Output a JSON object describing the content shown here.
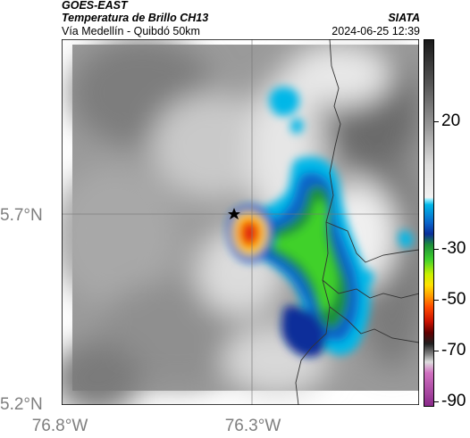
{
  "header": {
    "satellite": "GOES-EAST",
    "product": "Temperatura de Brillo CH13",
    "region": "Vía Medellín - Quibdó 50km",
    "org": "SIATA",
    "datetime": "2024-06-25 12:39"
  },
  "axes": {
    "lat_labels": [
      {
        "value": 5.7,
        "text": "5.7°N"
      },
      {
        "value": 5.2,
        "text": "5.2°N"
      }
    ],
    "lon_labels": [
      {
        "value": -76.8,
        "text": "76.8°W"
      },
      {
        "value": -76.3,
        "text": "76.3°W"
      }
    ]
  },
  "colorbar": {
    "ticks": [
      {
        "value": 20,
        "text": "20"
      },
      {
        "value": -30,
        "text": "-30"
      },
      {
        "value": -50,
        "text": "-50"
      },
      {
        "value": -70,
        "text": "-70"
      },
      {
        "value": -90,
        "text": "-90"
      }
    ],
    "range": [
      -92,
      52
    ],
    "units": ""
  },
  "map": {
    "marker": "star-marker",
    "gridlines": true
  }
}
